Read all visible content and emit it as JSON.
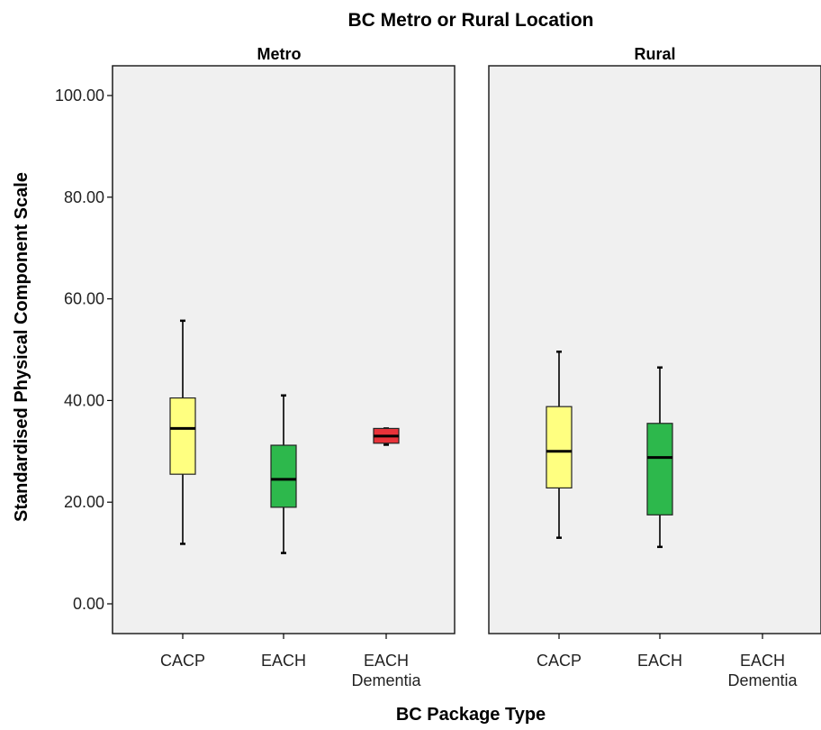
{
  "chart_data": {
    "type": "boxplot",
    "title": "BC Metro or Rural Location",
    "xlabel": "BC Package Type",
    "ylabel": "Standardised Physical Component Scale",
    "ylim": [
      0,
      100
    ],
    "yticks": [
      "0.00",
      "20.00",
      "40.00",
      "60.00",
      "80.00",
      "100.00"
    ],
    "categories": [
      {
        "lines": [
          "CACP"
        ]
      },
      {
        "lines": [
          "EACH"
        ]
      },
      {
        "lines": [
          "EACH",
          "Dementia"
        ]
      }
    ],
    "colors": {
      "CACP": "#ffff80",
      "EACH": "#2db84c",
      "EACH Dementia": "#e8333a",
      "panel_background": "#f0f0f0"
    },
    "grid": false,
    "panels": [
      {
        "label": "Metro",
        "boxes": [
          {
            "category": "CACP",
            "min": 11.8,
            "q1": 25.5,
            "median": 34.5,
            "q3": 40.5,
            "max": 55.7
          },
          {
            "category": "EACH",
            "min": 10.0,
            "q1": 19.0,
            "median": 24.5,
            "q3": 31.2,
            "max": 41.0
          },
          {
            "category": "EACH Dementia",
            "min": 31.3,
            "q1": 31.6,
            "median": 33.0,
            "q3": 34.5,
            "max": 34.5
          }
        ]
      },
      {
        "label": "Rural",
        "boxes": [
          {
            "category": "CACP",
            "min": 13.0,
            "q1": 22.8,
            "median": 30.0,
            "q3": 38.8,
            "max": 49.6
          },
          {
            "category": "EACH",
            "min": 11.2,
            "q1": 17.5,
            "median": 28.8,
            "q3": 35.5,
            "max": 46.5
          }
        ]
      }
    ]
  }
}
